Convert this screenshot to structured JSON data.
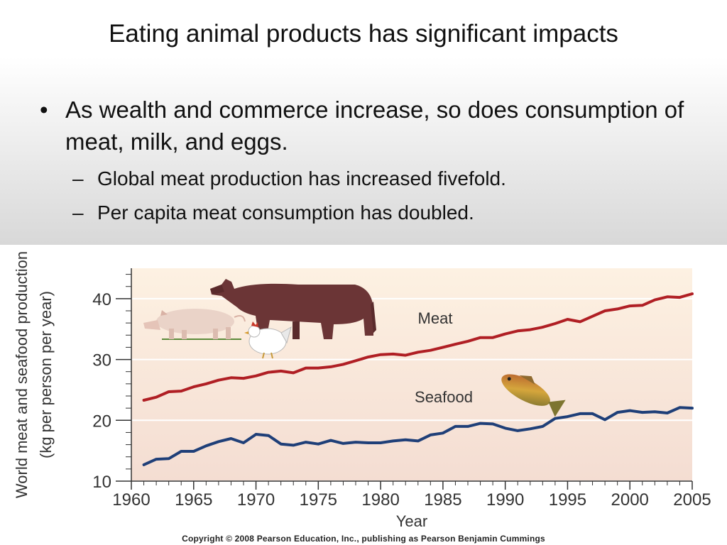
{
  "slide": {
    "title": "Eating animal products has significant impacts",
    "bullet": "As wealth and commerce increase, so does consumption of meat, milk, and eggs.",
    "subbullets": [
      "Global meat production has increased fivefold.",
      "Per capita meat consumption has doubled."
    ],
    "bullet_marker": "•",
    "sub_marker": "–",
    "copyright": "Copyright © 2008 Pearson Education, Inc., publishing as Pearson Benjamin Cummings"
  },
  "chart_data": {
    "type": "line",
    "title": "",
    "xlabel": "Year",
    "ylabel_line1": "World meat and seafood production",
    "ylabel_line2": "(kg per person per year)",
    "xlim": [
      1960,
      2005
    ],
    "ylim": [
      10,
      45
    ],
    "xticks": [
      1960,
      1965,
      1970,
      1975,
      1980,
      1985,
      1990,
      1995,
      2000,
      2005
    ],
    "yticks": [
      10,
      20,
      30,
      40
    ],
    "grid": true,
    "x": [
      1961,
      1962,
      1963,
      1964,
      1965,
      1966,
      1967,
      1968,
      1969,
      1970,
      1971,
      1972,
      1973,
      1974,
      1975,
      1976,
      1977,
      1978,
      1979,
      1980,
      1981,
      1982,
      1983,
      1984,
      1985,
      1986,
      1987,
      1988,
      1989,
      1990,
      1991,
      1992,
      1993,
      1994,
      1995,
      1996,
      1997,
      1998,
      1999,
      2000,
      2001,
      2002,
      2003,
      2004,
      2005
    ],
    "series": [
      {
        "name": "Meat",
        "color": "#b01f24",
        "values": [
          23.3,
          23.8,
          24.7,
          24.8,
          25.5,
          26.0,
          26.6,
          27.0,
          26.9,
          27.3,
          27.9,
          28.1,
          27.8,
          28.6,
          28.6,
          28.8,
          29.2,
          29.8,
          30.4,
          30.8,
          30.9,
          30.7,
          31.2,
          31.5,
          32.0,
          32.5,
          33.0,
          33.6,
          33.6,
          34.2,
          34.7,
          34.9,
          35.3,
          35.9,
          36.6,
          36.2,
          37.1,
          38.0,
          38.3,
          38.8,
          38.9,
          39.8,
          40.3,
          40.2,
          40.8
        ]
      },
      {
        "name": "Seafood",
        "color": "#1f3f78",
        "values": [
          12.7,
          13.6,
          13.7,
          14.9,
          14.9,
          15.8,
          16.5,
          17.0,
          16.3,
          17.7,
          17.5,
          16.1,
          15.9,
          16.4,
          16.1,
          16.7,
          16.2,
          16.4,
          16.3,
          16.3,
          16.6,
          16.8,
          16.6,
          17.6,
          17.9,
          19.0,
          19.0,
          19.5,
          19.4,
          18.7,
          18.3,
          18.6,
          19.0,
          20.3,
          20.6,
          21.1,
          21.1,
          20.1,
          21.3,
          21.6,
          21.3,
          21.4,
          21.2,
          22.1,
          22.0
        ]
      }
    ],
    "label_colors": {
      "text": "#333333",
      "axis": "#333333"
    },
    "background_gradient": [
      "#fdf1e2",
      "#f4ddd2"
    ],
    "pictures": [
      "cow-picture",
      "pig-picture",
      "chicken-picture",
      "fish-picture"
    ]
  }
}
